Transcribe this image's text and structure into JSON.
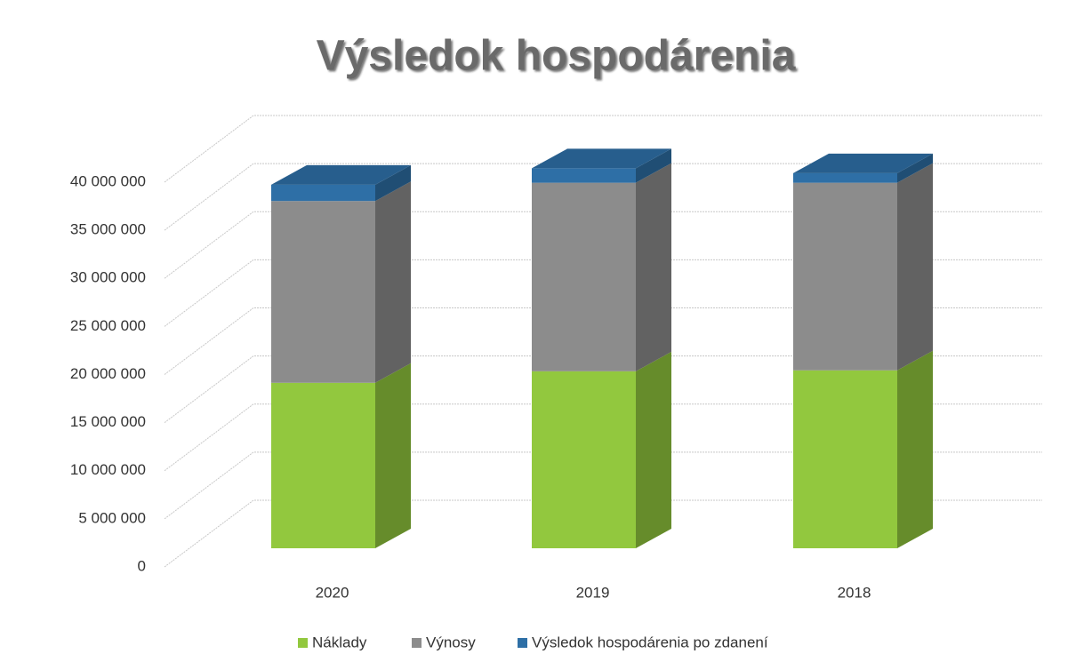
{
  "chart_data": {
    "type": "bar3d_stacked",
    "title": "Výsledok hospodárenia",
    "categories": [
      "2020",
      "2019",
      "2018"
    ],
    "series": [
      {
        "name": "Náklady",
        "color": "#92c83e",
        "values": [
          17200000,
          18400000,
          18500000
        ]
      },
      {
        "name": "Výnosy",
        "color": "#8c8c8c",
        "values": [
          18900000,
          19600000,
          19500000
        ]
      },
      {
        "name": "Výsledok hospodárenia po zdanení",
        "color": "#2e6fa6",
        "values": [
          1700000,
          1500000,
          1000000
        ]
      }
    ],
    "ylim": [
      0,
      40000000
    ],
    "yticks": [
      0,
      {
        "value": 5000000,
        "label": "5 000 000"
      },
      {
        "value": 10000000,
        "label": "10 000 000"
      },
      {
        "value": 15000000,
        "label": "15 000 000"
      },
      {
        "value": 20000000,
        "label": "20 000 000"
      },
      {
        "value": 25000000,
        "label": "25 000 000"
      },
      {
        "value": 30000000,
        "label": "30 000 000"
      },
      {
        "value": 35000000,
        "label": "35 000 000"
      },
      {
        "value": 40000000,
        "label": "40 000 000"
      }
    ],
    "grid": true,
    "legend": "bottom"
  }
}
